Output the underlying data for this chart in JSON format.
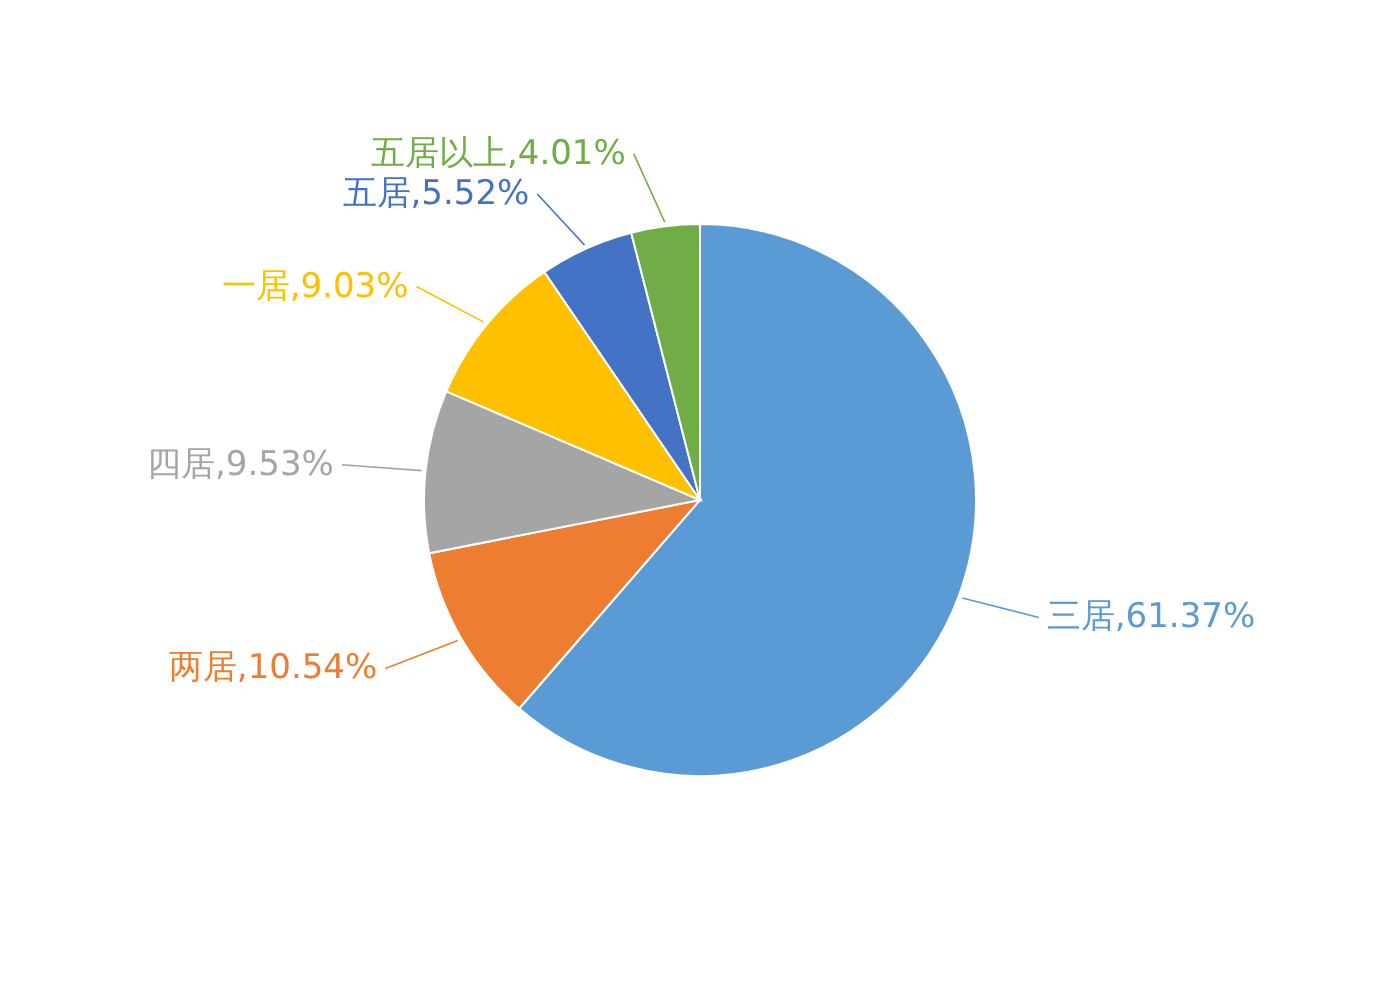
{
  "chart_data": {
    "type": "pie",
    "categories": [
      "三居",
      "两居",
      "四居",
      "一居",
      "五居",
      "五居以上"
    ],
    "values": [
      61.37,
      10.54,
      9.53,
      9.03,
      5.52,
      4.01
    ],
    "value_labels": [
      "61.37%",
      "10.54%",
      "9.53%",
      "9.03%",
      "5.52%",
      "4.01%"
    ],
    "colors": [
      "#5b9bd5",
      "#ed7d31",
      "#a5a5a5",
      "#ffc000",
      "#4472c4",
      "#70ad47"
    ]
  }
}
